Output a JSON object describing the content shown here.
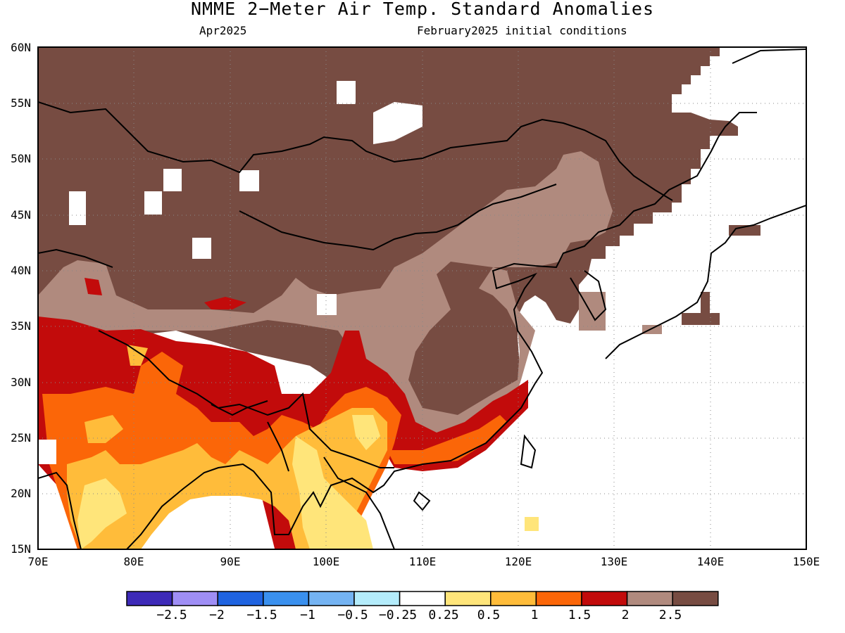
{
  "header": {
    "title": "NMME 2−Meter Air Temp. Standard Anomalies",
    "valid_month": "Apr2025",
    "initial_conditions": "February2025 initial conditions"
  },
  "axes": {
    "lat_labels": [
      "60N",
      "55N",
      "50N",
      "45N",
      "40N",
      "35N",
      "30N",
      "25N",
      "20N",
      "15N"
    ],
    "lon_labels": [
      "70E",
      "80E",
      "90E",
      "100E",
      "110E",
      "120E",
      "130E",
      "140E",
      "150E"
    ],
    "lat_range": [
      15,
      60
    ],
    "lon_range": [
      70,
      150
    ],
    "grid_lines": "dotted"
  },
  "legend": {
    "colors": [
      "#3d2ab8",
      "#9f8ef5",
      "#1f63e0",
      "#3a90ee",
      "#74b3f2",
      "#b4ecfb",
      "#ffffff",
      "#ffe57a",
      "#ffbc3a",
      "#fb6608",
      "#c20b0b",
      "#b08a7e",
      "#774c42"
    ],
    "labels": [
      "−2.5",
      "−2",
      "−1.5",
      "−1",
      "−0.5",
      "−0.25",
      "0.25",
      "0.5",
      "1",
      "1.5",
      "2",
      "2.5"
    ]
  },
  "map": {
    "region": "East and South Asia",
    "dominant_anomaly": "2.5+",
    "anomaly_regions": [
      {
        "category": "2-2.5",
        "color": "#b08a7e"
      },
      {
        "category": "1.5-2",
        "color": "#c20b0b"
      },
      {
        "category": "1-1.5",
        "color": "#fb6608"
      },
      {
        "category": "0.5-1",
        "color": "#ffbc3a"
      },
      {
        "category": "0.25-0.5",
        "color": "#ffe57a"
      },
      {
        "category": "-0.25-0.25",
        "color": "#ffffff"
      }
    ]
  }
}
